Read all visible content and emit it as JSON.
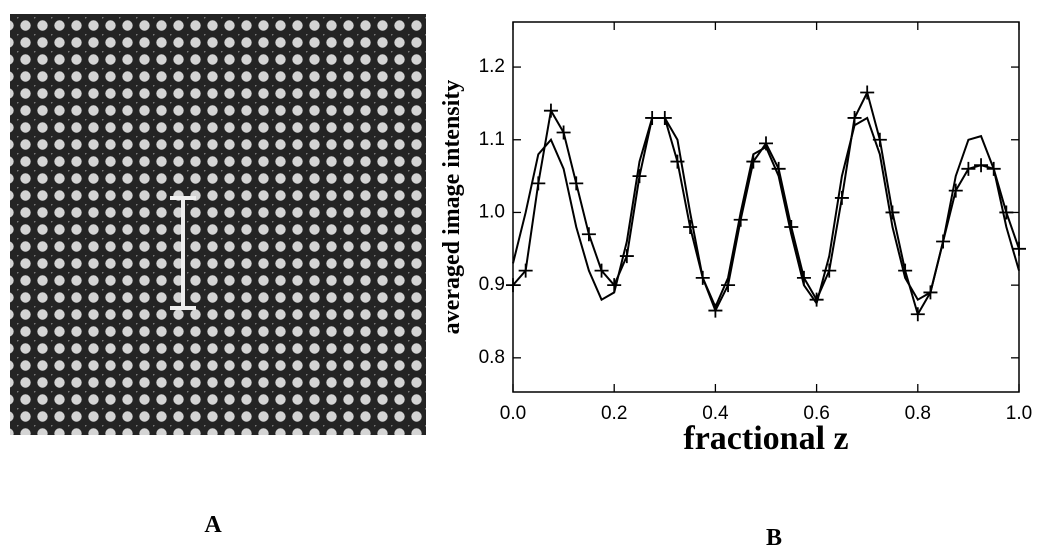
{
  "panel_labels": [
    "A",
    "B"
  ],
  "chart_data": {
    "type": "line",
    "xlabel": "fractional z",
    "ylabel": "averaged image intensity",
    "x": [
      0,
      0.025,
      0.05,
      0.075,
      0.1,
      0.125,
      0.15,
      0.175,
      0.2,
      0.225,
      0.25,
      0.275,
      0.3,
      0.325,
      0.35,
      0.375,
      0.4,
      0.425,
      0.45,
      0.475,
      0.5,
      0.525,
      0.55,
      0.575,
      0.6,
      0.625,
      0.65,
      0.675,
      0.7,
      0.725,
      0.75,
      0.775,
      0.8,
      0.825,
      0.85,
      0.875,
      0.9,
      0.925,
      0.95,
      0.975,
      1.0
    ],
    "series": [
      {
        "color": "#000000",
        "marker": "plus",
        "values": [
          0.9,
          0.92,
          1.04,
          1.14,
          1.11,
          1.04,
          0.97,
          0.92,
          0.9,
          0.94,
          1.05,
          1.13,
          1.13,
          1.07,
          0.98,
          0.91,
          0.865,
          0.9,
          0.99,
          1.07,
          1.095,
          1.06,
          0.98,
          0.91,
          0.88,
          0.92,
          1.02,
          1.13,
          1.165,
          1.1,
          1.0,
          0.92,
          0.86,
          0.89,
          0.96,
          1.03,
          1.06,
          1.065,
          1.06,
          1.0,
          0.95
        ]
      },
      {
        "color": "#000000",
        "marker": "none",
        "values": [
          0.93,
          1.0,
          1.08,
          1.1,
          1.06,
          0.98,
          0.92,
          0.88,
          0.89,
          0.96,
          1.07,
          1.13,
          1.13,
          1.1,
          1.0,
          0.91,
          0.87,
          0.91,
          1.0,
          1.08,
          1.09,
          1.05,
          0.97,
          0.9,
          0.875,
          0.94,
          1.05,
          1.12,
          1.13,
          1.08,
          0.98,
          0.91,
          0.88,
          0.89,
          0.96,
          1.05,
          1.1,
          1.105,
          1.06,
          0.98,
          0.92
        ]
      }
    ],
    "xlim": [
      0,
      1.0
    ],
    "xticks": [
      {
        "value": 0,
        "label": "0.0"
      },
      0.2,
      0.4,
      0.6,
      0.8,
      {
        "value": 1.0,
        "label": "1.0"
      }
    ],
    "ylim": [
      0.753,
      1.262
    ],
    "yticks": [
      0.8,
      0.9,
      {
        "value": 1.0,
        "label": "1.0"
      },
      1.1,
      1.2
    ]
  }
}
